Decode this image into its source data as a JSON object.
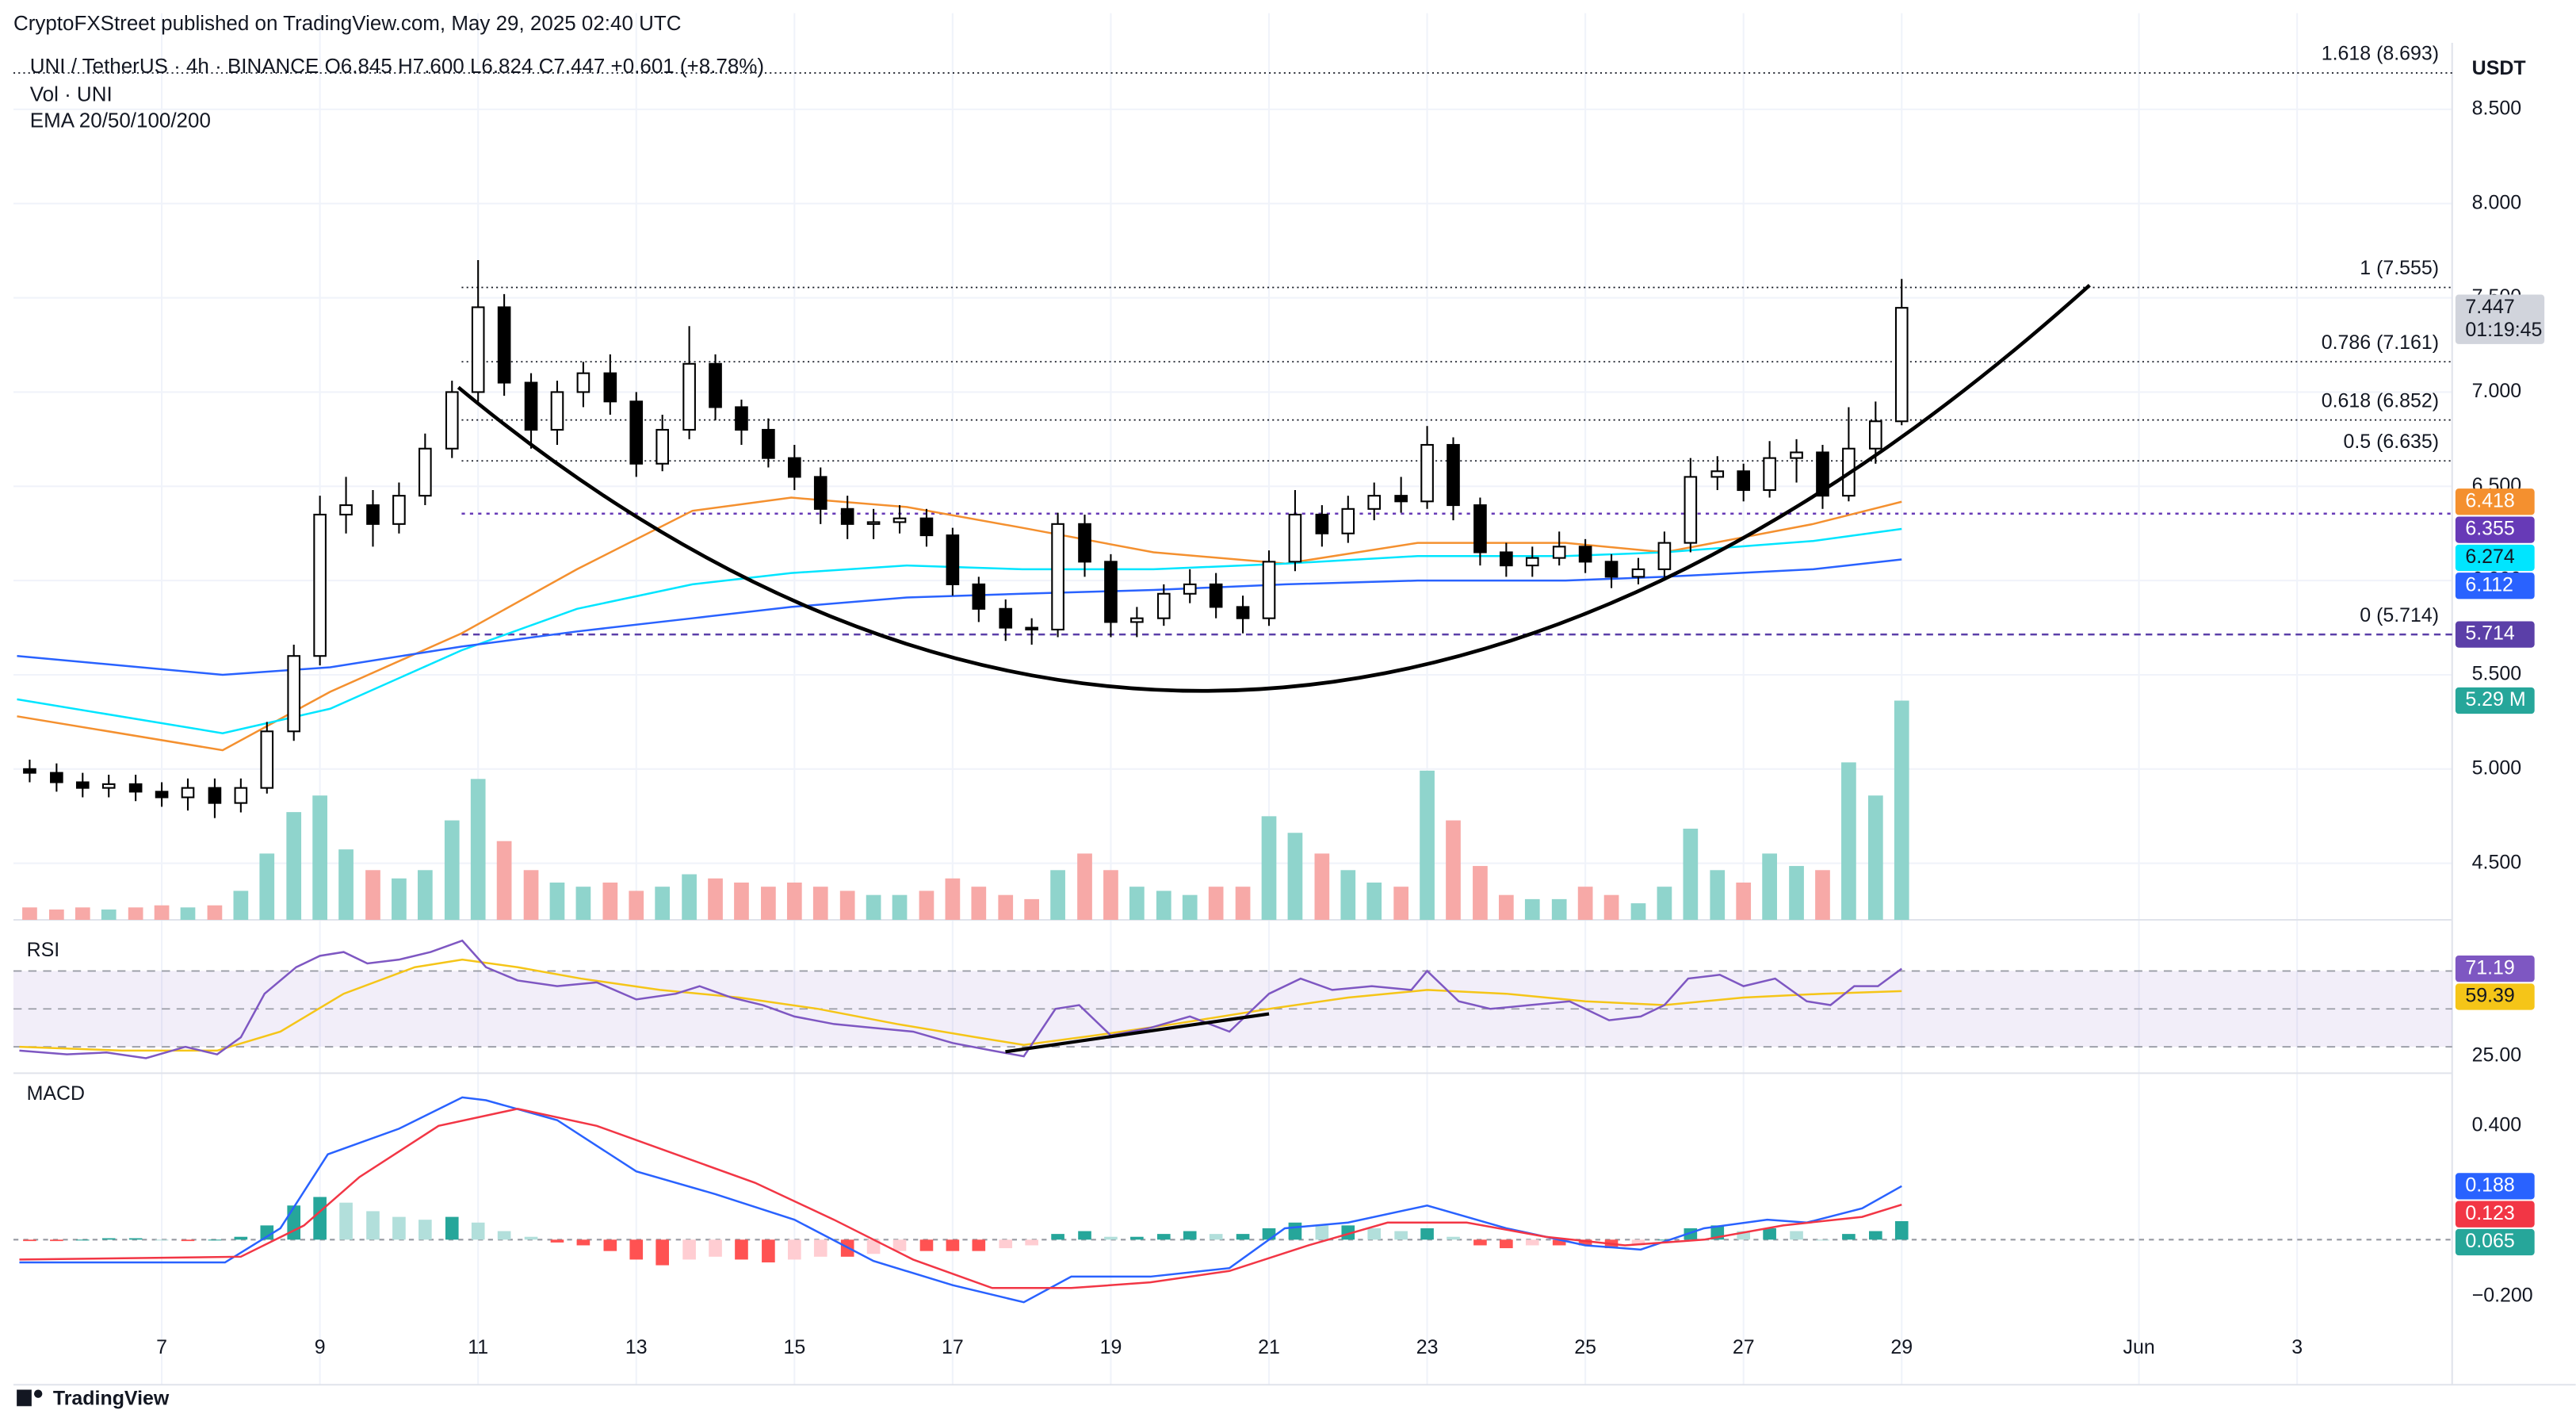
{
  "header": {
    "publisher": "CryptoFXStreet published on TradingView.com, May 29, 2025 02:40 UTC",
    "symbol_line": "UNI / TetherUS · 4h · BINANCE  O6.845  H7.600  L6.824  C7.447  +0.601 (+8.78%)",
    "vol_label": "Vol · UNI",
    "ema_label": "EMA 20/50/100/200",
    "brand": "TradingView"
  },
  "chart_data": [
    {
      "type": "candlestick",
      "unit": "USDT",
      "xlim": [
        5.125,
        35.96
      ],
      "xticks": [
        7,
        9,
        11,
        13,
        15,
        17,
        19,
        21,
        23,
        25,
        27,
        29,
        {
          "value": 32,
          "label": "Jun"
        },
        {
          "value": 34,
          "label": "3"
        }
      ],
      "ylim": [
        4.2,
        9.01
      ],
      "yticks": [
        {
          "value": 4.5,
          "label": "4.500"
        },
        {
          "value": 5,
          "label": "5.000"
        },
        {
          "value": 5.5,
          "label": "5.500"
        },
        {
          "value": 6,
          "label": "6.000"
        },
        {
          "value": 6.5,
          "label": "6.500"
        },
        {
          "value": 7,
          "label": "7.000"
        },
        {
          "value": 7.5,
          "label": "7.500"
        },
        {
          "value": 8,
          "label": "8.000"
        },
        {
          "value": 8.5,
          "label": "8.500"
        }
      ],
      "grid": true,
      "up_color": "#ffffff",
      "down_color": "#000000",
      "x": [
        5.33,
        5.67,
        6,
        6.33,
        6.67,
        7,
        7.33,
        7.67,
        8,
        8.33,
        8.67,
        9,
        9.33,
        9.67,
        10,
        10.33,
        10.67,
        11,
        11.33,
        11.67,
        12,
        12.33,
        12.67,
        13,
        13.33,
        13.67,
        14,
        14.33,
        14.67,
        15,
        15.33,
        15.67,
        16,
        16.33,
        16.67,
        17,
        17.33,
        17.67,
        18,
        18.33,
        18.67,
        19,
        19.33,
        19.67,
        20,
        20.33,
        20.67,
        21,
        21.33,
        21.67,
        22,
        22.33,
        22.67,
        23,
        23.33,
        23.67,
        24,
        24.33,
        24.67,
        25,
        25.33,
        25.67,
        26,
        26.33,
        26.67,
        27,
        27.33,
        27.67,
        28,
        28.33,
        28.67,
        29
      ],
      "open": [
        5.0,
        4.98,
        4.93,
        4.9,
        4.92,
        4.88,
        4.85,
        4.9,
        4.82,
        4.9,
        5.2,
        5.6,
        6.35,
        6.4,
        6.3,
        6.45,
        6.7,
        7.0,
        7.45,
        7.05,
        6.8,
        7.0,
        7.1,
        6.95,
        6.62,
        6.8,
        7.15,
        6.92,
        6.8,
        6.65,
        6.55,
        6.38,
        6.3,
        6.31,
        6.33,
        6.24,
        5.98,
        5.85,
        5.75,
        5.74,
        6.3,
        6.1,
        5.78,
        5.8,
        5.93,
        5.98,
        5.86,
        5.8,
        6.1,
        6.35,
        6.25,
        6.38,
        6.45,
        6.42,
        6.72,
        6.4,
        6.15,
        6.08,
        6.12,
        6.18,
        6.1,
        6.02,
        6.06,
        6.2,
        6.55,
        6.58,
        6.48,
        6.65,
        6.68,
        6.45,
        6.7,
        6.845
      ],
      "high": [
        5.05,
        5.03,
        4.98,
        4.97,
        4.97,
        4.93,
        4.95,
        4.95,
        4.95,
        5.25,
        5.66,
        6.45,
        6.55,
        6.48,
        6.52,
        6.78,
        7.06,
        7.7,
        7.52,
        7.1,
        7.06,
        7.16,
        7.2,
        7.0,
        6.88,
        7.35,
        7.2,
        6.96,
        6.86,
        6.72,
        6.6,
        6.45,
        6.38,
        6.4,
        6.38,
        6.28,
        6.02,
        5.9,
        5.8,
        6.36,
        6.35,
        6.14,
        5.86,
        5.98,
        6.06,
        6.04,
        5.92,
        6.16,
        6.48,
        6.4,
        6.45,
        6.52,
        6.55,
        6.82,
        6.76,
        6.44,
        6.2,
        6.18,
        6.26,
        6.22,
        6.14,
        6.12,
        6.26,
        6.65,
        6.66,
        6.62,
        6.74,
        6.75,
        6.72,
        6.92,
        6.95,
        7.6
      ],
      "low": [
        4.93,
        4.88,
        4.85,
        4.85,
        4.83,
        4.8,
        4.78,
        4.74,
        4.77,
        4.87,
        5.15,
        5.55,
        6.25,
        6.18,
        6.25,
        6.4,
        6.65,
        6.95,
        6.98,
        6.7,
        6.72,
        6.92,
        6.88,
        6.55,
        6.58,
        6.75,
        6.85,
        6.72,
        6.6,
        6.48,
        6.3,
        6.22,
        6.22,
        6.25,
        6.18,
        5.92,
        5.78,
        5.68,
        5.66,
        5.7,
        6.02,
        5.7,
        5.7,
        5.76,
        5.88,
        5.8,
        5.72,
        5.76,
        6.05,
        6.18,
        6.2,
        6.32,
        6.36,
        6.38,
        6.32,
        6.08,
        6.02,
        6.02,
        6.08,
        6.04,
        5.96,
        5.98,
        6.02,
        6.15,
        6.48,
        6.42,
        6.44,
        6.52,
        6.38,
        6.42,
        6.62,
        6.824
      ],
      "close": [
        4.98,
        4.93,
        4.9,
        4.92,
        4.88,
        4.85,
        4.9,
        4.82,
        4.9,
        5.2,
        5.6,
        6.35,
        6.4,
        6.3,
        6.45,
        6.7,
        7.0,
        7.45,
        7.05,
        6.8,
        7.0,
        7.1,
        6.95,
        6.62,
        6.8,
        7.15,
        6.92,
        6.8,
        6.65,
        6.55,
        6.38,
        6.3,
        6.31,
        6.33,
        6.24,
        5.98,
        5.85,
        5.75,
        5.74,
        6.3,
        6.1,
        5.78,
        5.8,
        5.93,
        5.98,
        5.86,
        5.8,
        6.1,
        6.35,
        6.25,
        6.38,
        6.45,
        6.42,
        6.72,
        6.4,
        6.15,
        6.08,
        6.12,
        6.18,
        6.1,
        6.02,
        6.06,
        6.2,
        6.55,
        6.58,
        6.48,
        6.65,
        6.68,
        6.45,
        6.7,
        6.845,
        7.447
      ],
      "volume": [
        0.3,
        0.25,
        0.3,
        0.25,
        0.3,
        0.35,
        0.3,
        0.35,
        0.7,
        1.6,
        2.6,
        3.0,
        1.7,
        1.2,
        1.0,
        1.2,
        2.4,
        3.4,
        1.9,
        1.2,
        0.9,
        0.8,
        0.9,
        0.7,
        0.8,
        1.1,
        1.0,
        0.9,
        0.8,
        0.9,
        0.8,
        0.7,
        0.6,
        0.6,
        0.7,
        1.0,
        0.8,
        0.6,
        0.5,
        1.2,
        1.6,
        1.2,
        0.8,
        0.7,
        0.6,
        0.8,
        0.8,
        2.5,
        2.1,
        1.6,
        1.2,
        0.9,
        0.8,
        3.6,
        2.4,
        1.3,
        0.6,
        0.5,
        0.5,
        0.8,
        0.6,
        0.4,
        0.8,
        2.2,
        1.2,
        0.9,
        1.6,
        1.3,
        1.2,
        3.8,
        3.0,
        5.29
      ],
      "volume_label": "5.29 M",
      "volume_up_color": "#8fd4cc",
      "volume_down_color": "#f7a9a7",
      "last_price_color": "#d1d4dc",
      "countdown": "01:19:45",
      "ema": [
        {
          "color": "#f4902f",
          "label_text_color": "#ffffff",
          "x": [
            5.17,
            7.77,
            9.13,
            10.79,
            12.25,
            13.71,
            14.96,
            16.42,
            17.88,
            19.54,
            21.21,
            22.88,
            24.75,
            26.0,
            27.88,
            29.0
          ],
          "values": [
            5.28,
            5.1,
            5.41,
            5.72,
            6.06,
            6.37,
            6.44,
            6.39,
            6.28,
            6.15,
            6.09,
            6.2,
            6.2,
            6.15,
            6.3,
            6.418
          ]
        },
        {
          "color": "#00e5ff",
          "label_text_color": "#131722",
          "x": [
            5.17,
            7.77,
            9.13,
            10.79,
            12.25,
            13.71,
            14.96,
            16.42,
            17.88,
            19.54,
            21.21,
            22.88,
            24.75,
            26.0,
            27.88,
            29.0
          ],
          "values": [
            5.37,
            5.19,
            5.32,
            5.63,
            5.85,
            5.98,
            6.04,
            6.08,
            6.06,
            6.06,
            6.09,
            6.13,
            6.13,
            6.15,
            6.21,
            6.274
          ]
        },
        {
          "color": "#2962ff",
          "label_text_color": "#ffffff",
          "x": [
            5.17,
            7.77,
            9.13,
            10.79,
            12.25,
            13.71,
            14.96,
            16.42,
            17.88,
            19.54,
            21.21,
            22.88,
            24.75,
            26.0,
            27.88,
            29.0
          ],
          "values": [
            5.6,
            5.5,
            5.54,
            5.65,
            5.73,
            5.8,
            5.86,
            5.91,
            5.93,
            5.95,
            5.98,
            6.0,
            6.0,
            6.02,
            6.06,
            6.112
          ]
        }
      ],
      "hline": {
        "value": 6.355,
        "color": "#673ab7"
      },
      "fib_levels": [
        {
          "label": "1.618 (8.693)",
          "value": 8.693
        },
        {
          "label": "1 (7.555)",
          "value": 7.555
        },
        {
          "label": "0.786 (7.161)",
          "value": 7.161
        },
        {
          "label": "0.618 (6.852)",
          "value": 6.852
        },
        {
          "label": "0.5 (6.635)",
          "value": 6.635
        },
        {
          "label": "0 (5.714)",
          "value": 5.714,
          "color": "#5b3fa8"
        }
      ]
    },
    {
      "type": "line",
      "title": "RSI",
      "ylim": [
        18.7,
        93.5
      ],
      "yticks": [
        {
          "value": 25,
          "label": "25.00"
        }
      ],
      "levels": [
        30,
        50,
        70
      ],
      "band_color": "#7e57c2",
      "series": [
        {
          "color": "#7e57c2",
          "x": [
            5.2,
            5.8,
            6.3,
            6.8,
            7.3,
            7.7,
            8.0,
            8.3,
            8.7,
            9.0,
            9.3,
            9.6,
            10.0,
            10.4,
            10.8,
            11.1,
            11.5,
            12.0,
            12.5,
            13.0,
            13.5,
            13.8,
            14.2,
            14.6,
            15.0,
            15.5,
            16.0,
            16.5,
            17.0,
            17.5,
            17.9,
            18.3,
            18.6,
            19.0,
            19.5,
            20.0,
            20.5,
            21.0,
            21.4,
            21.8,
            22.3,
            22.8,
            23.0,
            23.4,
            23.8,
            24.3,
            24.8,
            25.3,
            25.7,
            26.0,
            26.3,
            26.7,
            27.0,
            27.4,
            27.8,
            28.1,
            28.4,
            28.7,
            29.0
          ],
          "values": [
            28,
            26,
            27,
            24,
            30,
            26,
            35,
            58,
            72,
            78,
            80,
            74,
            76,
            80,
            86,
            72,
            65,
            62,
            64,
            55,
            58,
            62,
            56,
            52,
            46,
            42,
            40,
            38,
            32,
            28,
            25,
            50,
            52,
            36,
            40,
            46,
            38,
            58,
            66,
            60,
            62,
            60,
            70,
            54,
            50,
            52,
            54,
            44,
            46,
            52,
            66,
            68,
            62,
            66,
            54,
            52,
            62,
            62,
            71.19
          ]
        },
        {
          "color": "#f5c518",
          "x": [
            5.2,
            6.5,
            7.7,
            8.5,
            9.3,
            10.2,
            10.8,
            11.5,
            12.3,
            13.3,
            14.3,
            15.3,
            16.3,
            17.3,
            17.9,
            18.8,
            19.8,
            21.0,
            22.0,
            23.0,
            24.0,
            25.0,
            26.0,
            27.0,
            28.0,
            29.0
          ],
          "values": [
            30,
            28,
            28,
            38,
            58,
            72,
            76,
            72,
            66,
            60,
            56,
            50,
            42,
            35,
            31,
            36,
            42,
            50,
            56,
            60,
            58,
            54,
            52,
            56,
            58,
            59.39
          ]
        }
      ]
    },
    {
      "type": "macd",
      "title": "MACD",
      "ylim": [
        -0.481,
        0.562
      ],
      "yticks": [
        {
          "value": 0.4,
          "label": "0.400"
        },
        {
          "value": 0,
          "label": "0.000"
        },
        {
          "value": -0.2,
          "label": "−0.200"
        }
      ],
      "series": [
        {
          "color": "#2962ff",
          "x": [
            5.2,
            7.8,
            8.5,
            9.1,
            10,
            10.8,
            11.1,
            12,
            13,
            14,
            15,
            16,
            17,
            17.9,
            18.5,
            19.5,
            20.5,
            21.2,
            22,
            23,
            24,
            25,
            25.7,
            26.5,
            27.3,
            27.8,
            28.5,
            29
          ],
          "values": [
            -0.08,
            -0.08,
            0.04,
            0.3,
            0.39,
            0.5,
            0.49,
            0.42,
            0.24,
            0.16,
            0.07,
            -0.075,
            -0.16,
            -0.22,
            -0.13,
            -0.13,
            -0.1,
            0.04,
            0.06,
            0.12,
            0.04,
            -0.02,
            -0.035,
            0.04,
            0.07,
            0.06,
            0.11,
            0.188
          ]
        },
        {
          "color": "#f23645",
          "x": [
            5.2,
            8,
            8.8,
            9.5,
            10.5,
            11.5,
            12.5,
            13.5,
            14.5,
            15.5,
            16.5,
            17.5,
            18.5,
            19.5,
            20.5,
            21.5,
            22.5,
            23.5,
            24.5,
            25.5,
            26.5,
            27.5,
            28.5,
            29
          ],
          "values": [
            -0.07,
            -0.06,
            0.05,
            0.22,
            0.4,
            0.46,
            0.4,
            0.3,
            0.2,
            0.07,
            -0.07,
            -0.17,
            -0.17,
            -0.15,
            -0.11,
            -0.02,
            0.06,
            0.06,
            0.01,
            -0.02,
            0.0,
            0.05,
            0.08,
            0.123
          ]
        }
      ],
      "histogram": {
        "colors": {
          "up_strong": "#26a69a",
          "up_weak": "#b2dfdb",
          "down_strong": "#ff5252",
          "down_weak": "#ffcdd2"
        },
        "values": [
          -0.005,
          -0.005,
          0,
          0.005,
          0.005,
          0,
          -0.005,
          0,
          0.01,
          0.05,
          0.12,
          0.15,
          0.13,
          0.1,
          0.08,
          0.07,
          0.08,
          0.06,
          0.03,
          0.01,
          -0.01,
          -0.02,
          -0.04,
          -0.07,
          -0.09,
          -0.07,
          -0.06,
          -0.07,
          -0.08,
          -0.07,
          -0.06,
          -0.06,
          -0.05,
          -0.04,
          -0.04,
          -0.04,
          -0.04,
          -0.03,
          -0.02,
          0.02,
          0.03,
          0.01,
          0.01,
          0.02,
          0.03,
          0.02,
          0.02,
          0.04,
          0.06,
          0.05,
          0.05,
          0.04,
          0.03,
          0.04,
          0.01,
          -0.02,
          -0.03,
          -0.02,
          -0.02,
          -0.02,
          -0.03,
          -0.02,
          0,
          0.04,
          0.05,
          0.03,
          0.04,
          0.03,
          0,
          0.02,
          0.03,
          0.065
        ]
      }
    }
  ]
}
